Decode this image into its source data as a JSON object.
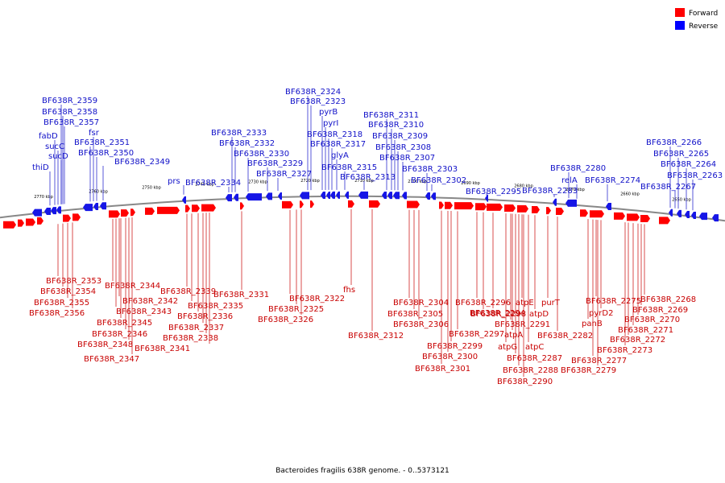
{
  "legend": [
    {
      "label": "Forward",
      "color": "#ff0000"
    },
    {
      "label": "Reverse",
      "color": "#0000ff"
    }
  ],
  "caption": "Bacteroides fragilis 638R genome. - 0..5373121",
  "colors": {
    "forward_arrow": "#ff0000",
    "reverse_arrow": "#1616e6",
    "forward_text": "#c80000",
    "reverse_text": "#1010c8",
    "axis": "#888888"
  },
  "ticks": [
    "2770 kbp",
    "2760 kbp",
    "2750 kbp",
    "2740 kbp",
    "2730 kbp",
    "2720 kbp",
    "2710 kbp",
    "2700 kbp",
    "2690 kbp",
    "2680 kbp",
    "2670 kbp",
    "2660 kbp",
    "2650 kbp"
  ],
  "reverse_labels": [
    "BF638R_2359",
    "BF638R_2358",
    "BF638R_2357",
    "fabD",
    "sucC",
    "sucD",
    "thiD",
    "fsr",
    "BF638R_2351",
    "BF638R_2350",
    "BF638R_2349",
    "prs",
    "BF638R_2334",
    "BF638R_2333",
    "BF638R_2332",
    "BF638R_2330",
    "BF638R_2329",
    "BF638R_2327",
    "BF638R_2324",
    "BF638R_2323",
    "pyrB",
    "pyrI",
    "BF638R_2318",
    "BF638R_2317",
    "glyA",
    "BF638R_2315",
    "BF638R_2313",
    "BF638R_2311",
    "BF638R_2310",
    "BF638R_2309",
    "BF638R_2308",
    "BF638R_2307",
    "BF638R_2303",
    "BF638R_2302",
    "BF638R_2295",
    "BF638R_2283",
    "BF638R_2280",
    "relA",
    "BF638R_2274",
    "BF638R_2266",
    "BF638R_2265",
    "BF638R_2264",
    "BF638R_2263",
    "BF638R_2267"
  ],
  "forward_labels": [
    "BF638R_2353",
    "BF638R_2354",
    "BF638R_2355",
    "BF638R_2356",
    "BF638R_2344",
    "BF638R_2342",
    "BF638R_2343",
    "BF638R_2345",
    "BF638R_2346",
    "BF638R_2348",
    "BF638R_2347",
    "BF638R_2339",
    "BF638R_2335",
    "BF638R_2336",
    "BF638R_2337",
    "BF638R_2338",
    "BF638R_2341",
    "BF638R_2331",
    "BF638R_2322",
    "BF638R_2325",
    "BF638R_2326",
    "fhs",
    "BF638R_2312",
    "BF638R_2304",
    "BF638R_2305",
    "BF638R_2306",
    "BF638R_2296",
    "BF638R_2298",
    "BF638R_2297",
    "BF638R_2299",
    "BF638R_2300",
    "BF638R_2301",
    "BF638R_2294",
    "BF638R_2291",
    "atpE",
    "atpD",
    "purT",
    "atpA",
    "atpG",
    "atpC",
    "BF638R_2287",
    "BF638R_2288",
    "BF638R_2290",
    "BF638R_2282",
    "BF638R_2275",
    "pyrD2",
    "panB",
    "BF638R_2277",
    "BF638R_2279",
    "BF638R_2268",
    "BF638R_2269",
    "BF638R_2270",
    "BF638R_2271",
    "BF638R_2272",
    "BF638R_2273"
  ]
}
